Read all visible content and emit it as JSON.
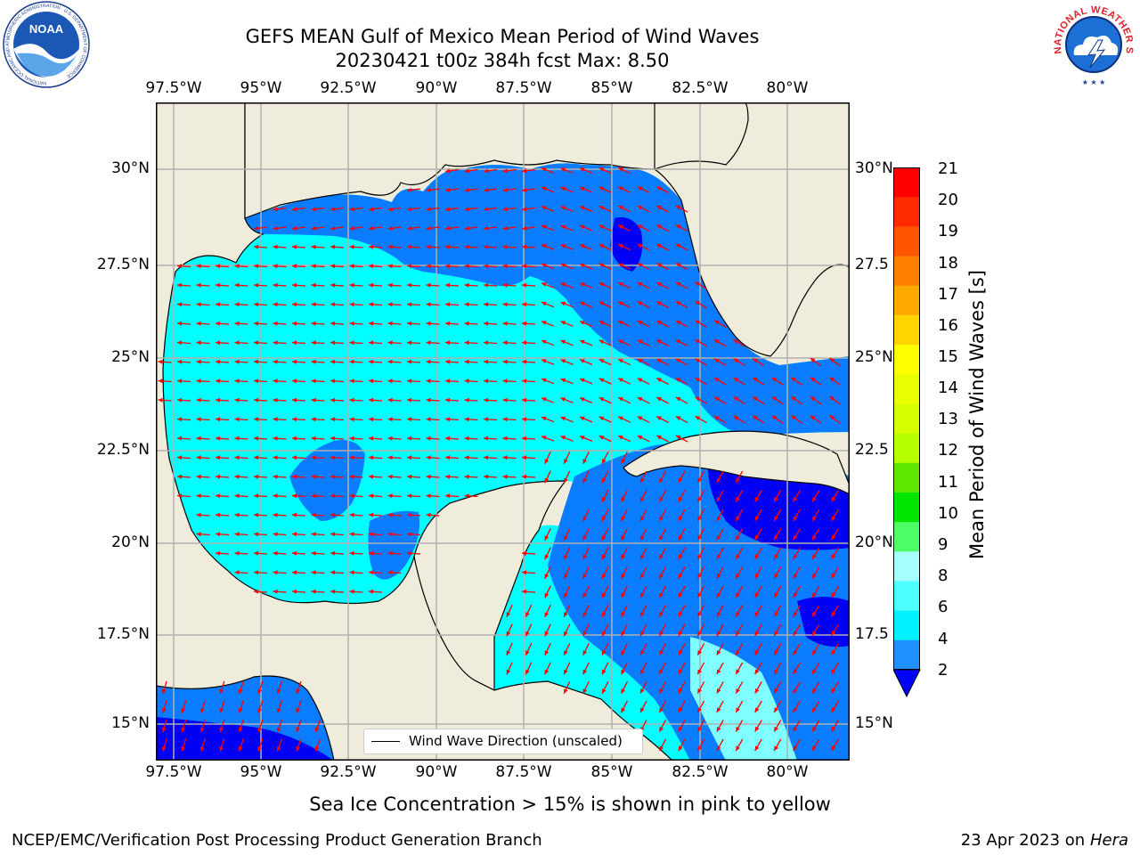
{
  "header": {
    "title_line1": "GEFS MEAN Gulf of Mexico Mean Period of Wind Waves",
    "title_line2": "20230421 t00z 384h fcst   Max: 8.50"
  },
  "logos": {
    "left": {
      "name": "NOAA",
      "ring_text": "NATIONAL OCEANIC AND ATMOSPHERIC ADMINISTRATION · U.S. DEPARTMENT OF COMMERCE"
    },
    "right": {
      "ring_text": "NATIONAL WEATHER SERVICE"
    }
  },
  "map": {
    "lon_labels": [
      "97.5°W",
      "95°W",
      "92.5°W",
      "90°W",
      "87.5°W",
      "85°W",
      "82.5°W",
      "80°W"
    ],
    "lat_labels_left": [
      "30°N",
      "27.5°N",
      "25°N",
      "22.5°N",
      "20°N",
      "17.5°N",
      "15°N"
    ],
    "lat_labels_right": [
      "30°N",
      "27.5",
      "25°N",
      "22.5",
      "20°N",
      "17.5",
      "15°N"
    ],
    "legend_text": "Wind Wave Direction (unscaled)",
    "colors": {
      "land": "#efecdc",
      "water_2_4": "#0a7cff",
      "water_4_6": "#00ffff",
      "water_0_2": "#0000f5",
      "arrow": "#ff0000",
      "grid": "#b0b0b0"
    }
  },
  "colorbar": {
    "label": "Mean Period of Wind Waves [s]",
    "ticks": [
      "21",
      "20",
      "19",
      "18",
      "17",
      "16",
      "15",
      "14",
      "13",
      "12",
      "11",
      "10",
      "9",
      "8",
      "6",
      "4",
      "2"
    ],
    "colors_top_to_bottom": [
      "#ff0000",
      "#ff2a00",
      "#ff5500",
      "#ff7f00",
      "#ffaa00",
      "#ffd400",
      "#ffff00",
      "#eaff00",
      "#d5ff00",
      "#b6ff00",
      "#5fe600",
      "#00e600",
      "#4dff66",
      "#a6ffff",
      "#4dffff",
      "#00f0ff",
      "#1e90ff"
    ],
    "under_color": "#0000ff"
  },
  "footer": {
    "note": "Sea Ice Concentration > 15% is shown in pink to yellow",
    "left": "NCEP/EMC/Verification Post Processing Product Generation Branch",
    "right_prefix": "23 Apr 2023 on ",
    "right_host": "Hera"
  }
}
